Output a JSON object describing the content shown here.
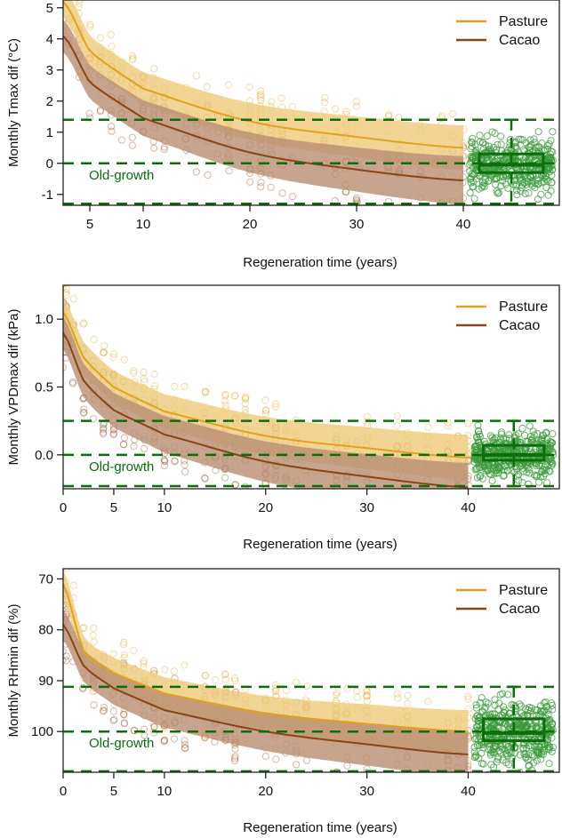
{
  "colors": {
    "pasture": "#E0A21A",
    "pasture_band": "#EFCB7A",
    "cacao": "#8B4513",
    "cacao_band": "#B88D72",
    "oldgrowth": "#0B6E0B",
    "oldgrowth_points": "#3A9A3A"
  },
  "chart_data": [
    {
      "type": "scatter",
      "title": "",
      "xlabel": "Regeneration time (years)",
      "ylabel": "Monthly Tmax dif (°C)",
      "xlim": [
        2.5,
        49
      ],
      "ylim": [
        -1.35,
        5.25
      ],
      "y_inverted": false,
      "xticks": [
        5,
        10,
        20,
        30,
        40
      ],
      "yticks": [
        -1,
        0,
        1,
        2,
        3,
        4,
        5
      ],
      "legend": {
        "position": "top-right",
        "entries": [
          "Pasture",
          "Cacao"
        ]
      },
      "oldgrowth_label": "Old-growth",
      "oldgrowth_lines": [
        1.4,
        0.0,
        -1.3
      ],
      "oldgrowth_box": {
        "x": 44.5,
        "q1": -0.3,
        "median": -0.05,
        "q3": 0.3
      },
      "series": [
        {
          "name": "Pasture",
          "x": [
            2.5,
            5,
            10,
            20,
            30,
            40
          ],
          "y": [
            5.2,
            3.6,
            2.4,
            1.35,
            0.85,
            0.5
          ],
          "band_width": 0.6
        },
        {
          "name": "Cacao",
          "x": [
            2.5,
            5,
            10,
            20,
            30,
            40
          ],
          "y": [
            4.1,
            2.6,
            1.45,
            0.35,
            -0.2,
            -0.55
          ],
          "band_width": 0.65
        }
      ]
    },
    {
      "type": "scatter",
      "title": "",
      "xlabel": "Regeneration time (years)",
      "ylabel": "Monthly VPDmax dif (kPa)",
      "xlim": [
        0,
        49
      ],
      "ylim": [
        -0.25,
        1.25
      ],
      "y_inverted": false,
      "xticks": [
        0,
        5,
        10,
        20,
        30,
        40
      ],
      "yticks": [
        "0.0",
        "0.5",
        "1.0"
      ],
      "legend": {
        "position": "top-right",
        "entries": [
          "Pasture",
          "Cacao"
        ]
      },
      "oldgrowth_label": "Old-growth",
      "oldgrowth_lines": [
        0.25,
        0.0,
        -0.23
      ],
      "oldgrowth_box": {
        "x": 44.5,
        "q1": -0.04,
        "median": 0.0,
        "q3": 0.07
      },
      "series": [
        {
          "name": "Pasture",
          "x": [
            0,
            2,
            5,
            10,
            20,
            30,
            40
          ],
          "y": [
            1.05,
            0.72,
            0.5,
            0.32,
            0.14,
            0.05,
            -0.02
          ],
          "band_width": 0.14
        },
        {
          "name": "Cacao",
          "x": [
            0,
            2,
            5,
            10,
            20,
            30,
            40
          ],
          "y": [
            0.9,
            0.55,
            0.33,
            0.15,
            -0.05,
            -0.16,
            -0.24
          ],
          "band_width": 0.15
        }
      ]
    },
    {
      "type": "scatter",
      "title": "",
      "xlabel": "Regeneration time (years)",
      "ylabel": "Monthly RHmin dif (%)",
      "xlim": [
        0,
        49
      ],
      "ylim": [
        68,
        108
      ],
      "y_inverted": true,
      "xticks": [
        0,
        5,
        10,
        20,
        30,
        40
      ],
      "yticks": [
        70,
        80,
        90,
        100
      ],
      "legend": {
        "position": "top-right",
        "entries": [
          "Pasture",
          "Cacao"
        ]
      },
      "oldgrowth_label": "Old-growth",
      "oldgrowth_lines": [
        91.2,
        100,
        107.8
      ],
      "oldgrowth_box": {
        "x": 44.5,
        "q1": 97.5,
        "median": 100.3,
        "q3": 101.8
      },
      "series": [
        {
          "name": "Pasture",
          "x": [
            0,
            2,
            5,
            10,
            20,
            30,
            40
          ],
          "y": [
            71,
            84,
            88.5,
            92.5,
            96.5,
            98.5,
            100
          ],
          "band_width": 3.5
        },
        {
          "name": "Cacao",
          "x": [
            0,
            2,
            5,
            10,
            20,
            30,
            40
          ],
          "y": [
            79,
            87,
            91.5,
            95.8,
            100,
            102.5,
            104.5
          ],
          "band_width": 3.8
        }
      ]
    }
  ]
}
